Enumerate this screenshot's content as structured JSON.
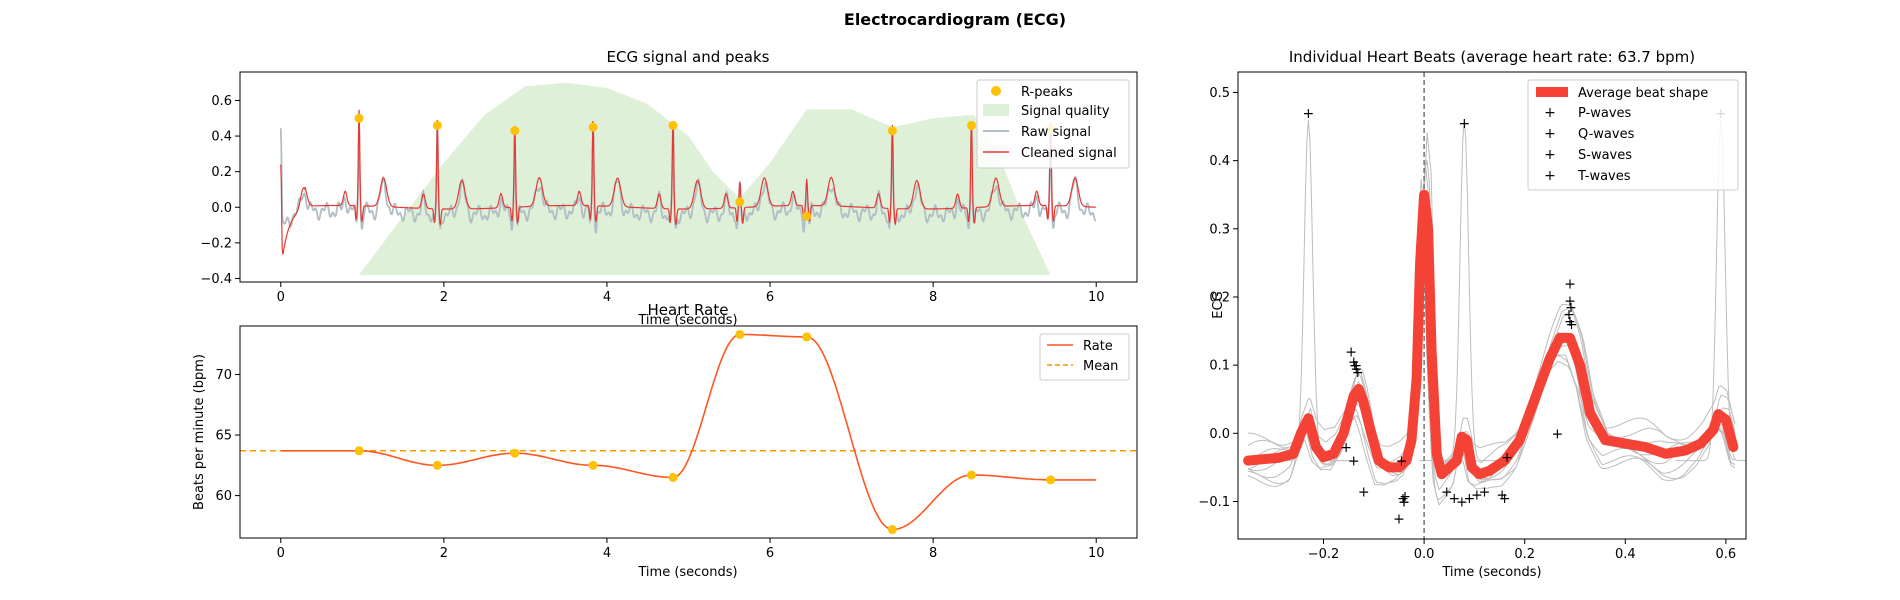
{
  "figure": {
    "suptitle": "Electrocardiogram (ECG)"
  },
  "chart_data": [
    {
      "id": "ecg",
      "type": "line",
      "title": "ECG signal and peaks",
      "xlabel": "Time (seconds)",
      "ylabel": "",
      "xlim": [
        -0.5,
        10.5
      ],
      "ylim": [
        -0.42,
        0.76
      ],
      "xticks": [
        0,
        2,
        4,
        6,
        8,
        10
      ],
      "yticks": [
        -0.4,
        -0.2,
        0.0,
        0.2,
        0.4,
        0.6
      ],
      "legend": {
        "placement": "top-right",
        "entries": [
          "R-peaks",
          "Signal quality",
          "Raw signal",
          "Cleaned signal"
        ]
      },
      "colors": {
        "rpeaks": "#FFC107",
        "quality": "#DFF0D8",
        "raw": "#B0BEC5",
        "cleaned": "#E53935"
      },
      "r_peaks": {
        "name": "R-peaks",
        "x": [
          0.96,
          1.92,
          2.87,
          3.83,
          4.81,
          5.63,
          6.45,
          7.5,
          8.47,
          9.44
        ],
        "y": [
          0.5,
          0.46,
          0.43,
          0.45,
          0.46,
          0.03,
          -0.05,
          0.43,
          0.46,
          0.44
        ]
      },
      "signal_quality": {
        "name": "Signal quality",
        "x": [
          0.96,
          1.5,
          2.0,
          2.5,
          3.0,
          3.5,
          4.0,
          4.5,
          5.0,
          5.3,
          5.63,
          6.0,
          6.45,
          7.0,
          7.5,
          8.0,
          8.5,
          8.8,
          9.1,
          9.44
        ],
        "y": [
          -0.38,
          -0.05,
          0.25,
          0.52,
          0.68,
          0.7,
          0.67,
          0.58,
          0.4,
          0.2,
          0.05,
          0.25,
          0.55,
          0.55,
          0.45,
          0.5,
          0.52,
          0.3,
          -0.05,
          -0.38
        ]
      },
      "raw_signal": {
        "name": "Raw signal"
      },
      "cleaned_signal": {
        "name": "Cleaned signal"
      }
    },
    {
      "id": "rate",
      "type": "line",
      "title": "Heart Rate",
      "xlabel": "Time (seconds)",
      "ylabel": "Beats per minute (bpm)",
      "xlim": [
        -0.5,
        10.5
      ],
      "ylim": [
        56.5,
        74.0
      ],
      "xticks": [
        0,
        2,
        4,
        6,
        8,
        10
      ],
      "yticks": [
        60,
        65,
        70
      ],
      "legend": {
        "placement": "top-right",
        "entries": [
          "Rate",
          "Mean"
        ]
      },
      "colors": {
        "rate": "#FF5722",
        "mean": "#FF9800",
        "points": "#FFC107"
      },
      "rate_points": {
        "x": [
          0.96,
          1.92,
          2.87,
          3.83,
          4.81,
          5.63,
          6.45,
          7.5,
          8.47,
          9.44
        ],
        "y": [
          63.7,
          62.5,
          63.5,
          62.5,
          61.5,
          73.3,
          73.1,
          57.2,
          61.7,
          61.3
        ]
      },
      "rate_extent": {
        "x_start": 0,
        "y_start": 63.7,
        "x_end": 10,
        "y_end": 61.3
      },
      "mean": 63.7
    },
    {
      "id": "beats",
      "type": "line",
      "title": "Individual Heart Beats (average heart rate: 63.7 bpm)",
      "xlabel": "Time (seconds)",
      "ylabel": "ECG",
      "xlim": [
        -0.37,
        0.64
      ],
      "ylim": [
        -0.155,
        0.53
      ],
      "xticks": [
        -0.2,
        0.0,
        0.2,
        0.4,
        0.6
      ],
      "yticks": [
        -0.1,
        0.0,
        0.1,
        0.2,
        0.3,
        0.4,
        0.5
      ],
      "legend": {
        "placement": "top-right",
        "entries": [
          "Average beat shape",
          "P-waves",
          "Q-waves",
          "S-waves",
          "T-waves"
        ]
      },
      "colors": {
        "average": "#F44336",
        "individual": "#BDBDBD",
        "p": "#3949AB",
        "q": "#1E88E5",
        "s": "#039BE5",
        "t": "#00ACC1",
        "vline": "#757575"
      },
      "average_beat": {
        "name": "Average beat shape",
        "x": [
          -0.35,
          -0.32,
          -0.29,
          -0.26,
          -0.245,
          -0.23,
          -0.215,
          -0.2,
          -0.18,
          -0.16,
          -0.14,
          -0.13,
          -0.12,
          -0.105,
          -0.09,
          -0.07,
          -0.05,
          -0.035,
          -0.025,
          -0.015,
          -0.008,
          0.0,
          0.008,
          0.015,
          0.025,
          0.035,
          0.05,
          0.065,
          0.075,
          0.085,
          0.095,
          0.11,
          0.13,
          0.16,
          0.19,
          0.22,
          0.25,
          0.27,
          0.29,
          0.31,
          0.33,
          0.36,
          0.4,
          0.44,
          0.48,
          0.52,
          0.55,
          0.575,
          0.585,
          0.6,
          0.615
        ],
        "y": [
          -0.04,
          -0.038,
          -0.036,
          -0.03,
          0.0,
          0.022,
          -0.02,
          -0.035,
          -0.03,
          0.0,
          0.055,
          0.065,
          0.045,
          0.0,
          -0.04,
          -0.05,
          -0.05,
          -0.04,
          -0.01,
          0.08,
          0.25,
          0.35,
          0.3,
          0.12,
          -0.03,
          -0.06,
          -0.05,
          -0.04,
          -0.005,
          -0.01,
          -0.05,
          -0.06,
          -0.055,
          -0.04,
          -0.01,
          0.05,
          0.11,
          0.14,
          0.14,
          0.1,
          0.03,
          -0.01,
          -0.015,
          -0.02,
          -0.03,
          -0.025,
          -0.015,
          0.005,
          0.028,
          0.02,
          -0.02
        ]
      },
      "p_waves": {
        "name": "P-waves",
        "x": [
          -0.23,
          -0.145,
          -0.14,
          -0.138,
          -0.135,
          -0.132,
          -0.135
        ],
        "y": [
          0.47,
          0.12,
          0.105,
          0.1,
          0.095,
          0.09,
          0.1
        ]
      },
      "q_waves": {
        "name": "Q-waves",
        "x": [
          -0.155,
          -0.14,
          -0.12,
          -0.05,
          -0.042,
          -0.04,
          -0.038,
          0.045,
          0.06,
          0.075,
          0.09
        ],
        "y": [
          -0.02,
          -0.04,
          -0.085,
          -0.125,
          -0.095,
          -0.1,
          -0.092,
          -0.085,
          -0.095,
          -0.1,
          -0.095
        ]
      },
      "s_waves": {
        "name": "S-waves",
        "x": [
          -0.045,
          -0.04,
          0.105,
          0.12,
          0.155,
          0.16,
          0.165
        ],
        "y": [
          -0.04,
          -0.1,
          -0.09,
          -0.085,
          -0.09,
          -0.095,
          -0.035
        ]
      },
      "t_waves": {
        "name": "T-waves",
        "x": [
          0.08,
          0.265,
          0.29,
          0.29,
          0.292,
          0.288,
          0.29,
          0.293,
          0.59
        ],
        "y": [
          0.455,
          0.0,
          0.22,
          0.195,
          0.185,
          0.175,
          0.165,
          0.16,
          0.47
        ]
      }
    }
  ]
}
